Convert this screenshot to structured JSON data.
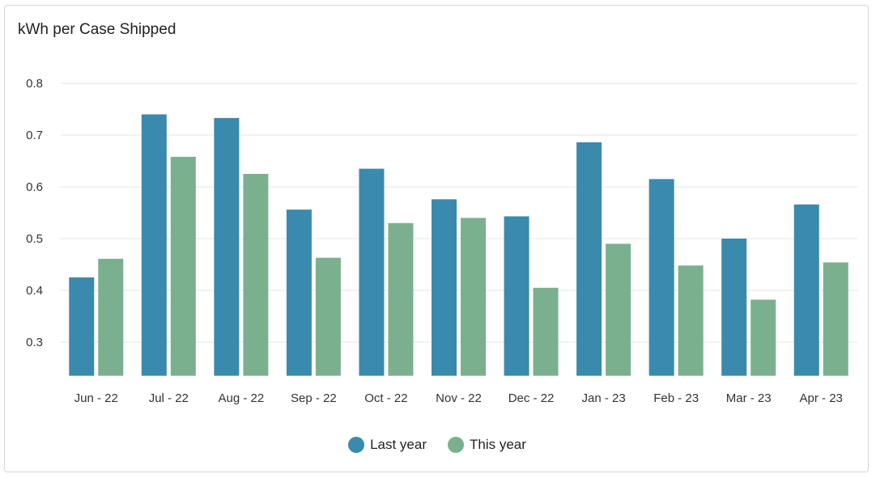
{
  "chart_data": {
    "type": "bar",
    "title": "kWh per Case Shipped",
    "categories": [
      "Jun - 22",
      "Jul - 22",
      "Aug - 22",
      "Sep - 22",
      "Oct - 22",
      "Nov - 22",
      "Dec - 22",
      "Jan - 23",
      "Feb - 23",
      "Mar - 23",
      "Apr - 23"
    ],
    "series": [
      {
        "name": "Last year",
        "color": "#3a8aad",
        "values": [
          0.425,
          0.74,
          0.733,
          0.556,
          0.635,
          0.576,
          0.543,
          0.686,
          0.615,
          0.5,
          0.566
        ]
      },
      {
        "name": "This year",
        "color": "#7bb08f",
        "values": [
          0.461,
          0.658,
          0.625,
          0.463,
          0.53,
          0.54,
          0.405,
          0.49,
          0.448,
          0.382,
          0.454
        ]
      }
    ],
    "yticks": [
      "0.3",
      "0.4",
      "0.5",
      "0.6",
      "0.7",
      "0.8"
    ],
    "ylim": [
      0.235,
      0.8
    ],
    "xlabel": "",
    "ylabel": "",
    "grid": true,
    "legend_position": "bottom-center"
  }
}
